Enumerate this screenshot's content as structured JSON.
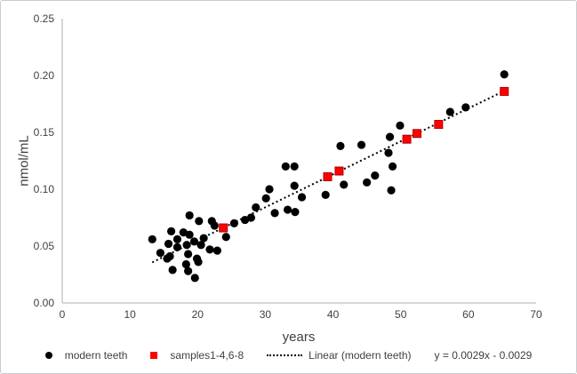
{
  "window": {
    "background": "#ffffff",
    "border_color": "#c9ccce"
  },
  "colors": {
    "axis_line": "#bfbfbf",
    "tick_text": "#3f3f3f",
    "modern_teeth": "#000000",
    "samples": "#ff0000",
    "samples_border": "#b00000",
    "trendline": "#000000"
  },
  "chart_data": {
    "type": "scatter",
    "title": "",
    "xlabel": "years",
    "ylabel": "nmol/mL",
    "xlim": [
      0,
      70
    ],
    "ylim": [
      0,
      0.25
    ],
    "x_ticks": [
      0,
      10,
      20,
      30,
      40,
      50,
      60,
      70
    ],
    "y_ticks": [
      0,
      0.05,
      0.1,
      0.15,
      0.2,
      0.25
    ],
    "y_tick_labels": [
      "0.00",
      "0.05",
      "0.10",
      "0.15",
      "0.20",
      "0.25"
    ],
    "grid": false,
    "legend_position": "bottom",
    "series": [
      {
        "name": "modern teeth",
        "marker": "circle",
        "color": "#000000",
        "points": [
          [
            13.3,
            0.056
          ],
          [
            14.5,
            0.044
          ],
          [
            15.5,
            0.039
          ],
          [
            15.7,
            0.052
          ],
          [
            15.9,
            0.041
          ],
          [
            16.1,
            0.063
          ],
          [
            16.3,
            0.029
          ],
          [
            17.0,
            0.056
          ],
          [
            17.0,
            0.049
          ],
          [
            17.9,
            0.062
          ],
          [
            18.3,
            0.034
          ],
          [
            18.4,
            0.051
          ],
          [
            18.6,
            0.043
          ],
          [
            18.6,
            0.028
          ],
          [
            18.8,
            0.077
          ],
          [
            18.8,
            0.06
          ],
          [
            19.5,
            0.054
          ],
          [
            19.6,
            0.022
          ],
          [
            19.9,
            0.039
          ],
          [
            20.1,
            0.036
          ],
          [
            20.2,
            0.072
          ],
          [
            20.5,
            0.051
          ],
          [
            20.9,
            0.057
          ],
          [
            21.8,
            0.047
          ],
          [
            22.1,
            0.072
          ],
          [
            22.5,
            0.068
          ],
          [
            22.9,
            0.046
          ],
          [
            24.2,
            0.058
          ],
          [
            25.4,
            0.07
          ],
          [
            27.0,
            0.073
          ],
          [
            27.9,
            0.075
          ],
          [
            28.6,
            0.084
          ],
          [
            30.1,
            0.092
          ],
          [
            30.6,
            0.1
          ],
          [
            31.4,
            0.079
          ],
          [
            33.0,
            0.12
          ],
          [
            33.3,
            0.082
          ],
          [
            34.3,
            0.12
          ],
          [
            34.3,
            0.103
          ],
          [
            34.4,
            0.08
          ],
          [
            35.4,
            0.093
          ],
          [
            38.9,
            0.095
          ],
          [
            41.1,
            0.138
          ],
          [
            41.6,
            0.104
          ],
          [
            44.2,
            0.139
          ],
          [
            45.0,
            0.106
          ],
          [
            46.2,
            0.112
          ],
          [
            48.2,
            0.132
          ],
          [
            48.4,
            0.146
          ],
          [
            48.6,
            0.099
          ],
          [
            48.8,
            0.12
          ],
          [
            49.9,
            0.156
          ],
          [
            57.3,
            0.168
          ],
          [
            59.6,
            0.172
          ],
          [
            65.3,
            0.201
          ]
        ]
      },
      {
        "name": "samples1-4,6-8",
        "marker": "square",
        "color": "#ff0000",
        "points": [
          [
            23.8,
            0.066
          ],
          [
            39.2,
            0.111
          ],
          [
            40.9,
            0.116
          ],
          [
            50.9,
            0.144
          ],
          [
            52.4,
            0.149
          ],
          [
            55.6,
            0.157
          ],
          [
            65.3,
            0.186
          ]
        ]
      }
    ],
    "trendline": {
      "label": "Linear (modern teeth)",
      "equation": "y = 0.0029x - 0.0029",
      "slope": 0.0029,
      "intercept": -0.0029,
      "x_start": 13.3,
      "x_end": 65.3,
      "style": "dotted",
      "color": "#000000"
    }
  }
}
